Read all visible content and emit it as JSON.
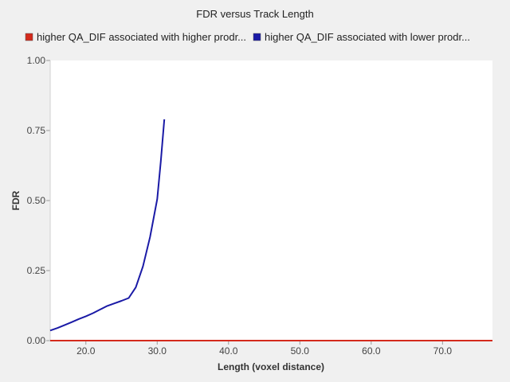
{
  "chart_data": {
    "type": "line",
    "title": "FDR versus Track Length",
    "xlabel": "Length (voxel distance)",
    "ylabel": "FDR",
    "xlim": [
      15,
      77
    ],
    "ylim": [
      0,
      1
    ],
    "x_ticks": [
      "20.0",
      "30.0",
      "40.0",
      "50.0",
      "60.0",
      "70.0"
    ],
    "y_ticks": [
      "0.00",
      "0.25",
      "0.50",
      "0.75",
      "1.00"
    ],
    "grid": false,
    "legend_position": "top",
    "series": [
      {
        "name": "higher QA_DIF associated with higher prodr...",
        "color": "#d42a1c",
        "x": [
          15,
          77
        ],
        "y": [
          0.0,
          0.0
        ]
      },
      {
        "name": "higher QA_DIF associated with lower prodr...",
        "color": "#1a1aa6",
        "x": [
          15,
          16,
          17,
          18,
          19,
          20,
          21,
          22,
          23,
          24,
          25,
          26,
          27,
          28,
          29,
          30,
          30.5,
          31
        ],
        "y": [
          0.036,
          0.045,
          0.055,
          0.066,
          0.077,
          0.087,
          0.098,
          0.111,
          0.124,
          0.133,
          0.142,
          0.152,
          0.19,
          0.265,
          0.37,
          0.505,
          0.64,
          0.79
        ]
      }
    ]
  }
}
